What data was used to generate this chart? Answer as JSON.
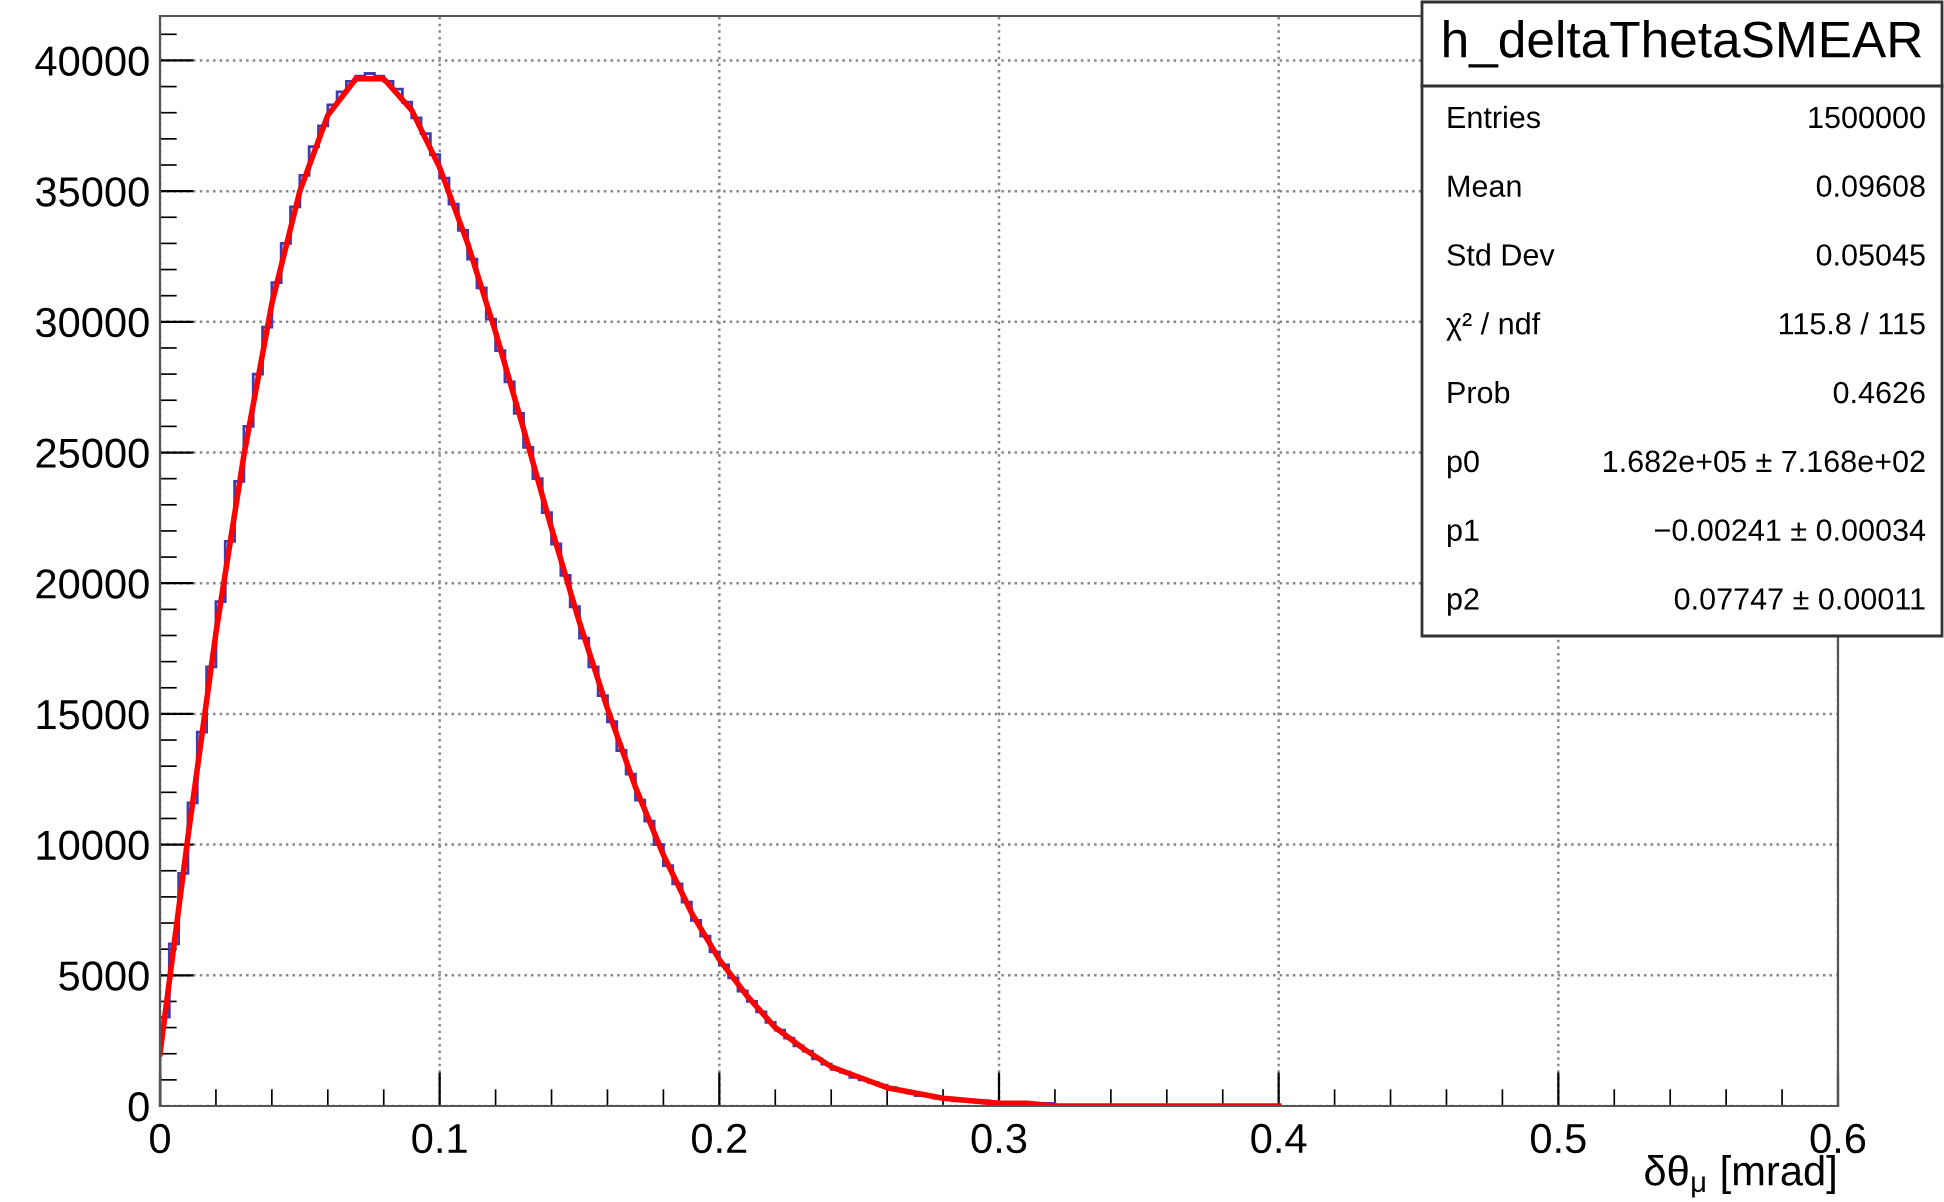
{
  "chart_data": {
    "type": "histogram",
    "xlabel": "δθ$_{μ}$ [mrad]",
    "bins": [
      0,
      0.00333,
      0.00667,
      0.01,
      0.01333,
      0.01667,
      0.02,
      0.02333,
      0.02667,
      0.03,
      0.03333,
      0.03667,
      0.04,
      0.04333,
      0.04667,
      0.05,
      0.05333,
      0.05667,
      0.06,
      0.06333,
      0.06667,
      0.07,
      0.07333,
      0.07667,
      0.08,
      0.08333,
      0.08667,
      0.09,
      0.09333,
      0.09667,
      0.1,
      0.10333,
      0.10667,
      0.11,
      0.11333,
      0.11667,
      0.12,
      0.12333,
      0.12667,
      0.13,
      0.13333,
      0.13667,
      0.14,
      0.14333,
      0.14667,
      0.15,
      0.15333,
      0.15667,
      0.16,
      0.16333,
      0.16667,
      0.17,
      0.17333,
      0.17667,
      0.18,
      0.18333,
      0.18667,
      0.19,
      0.19333,
      0.19667,
      0.2,
      0.20333,
      0.20667,
      0.21,
      0.21333,
      0.21667,
      0.22,
      0.22333,
      0.22667,
      0.23,
      0.23333,
      0.23667,
      0.24,
      0.24333,
      0.24667,
      0.25,
      0.25333,
      0.25667,
      0.26,
      0.26333,
      0.26667,
      0.27,
      0.27333,
      0.27667,
      0.28,
      0.28333,
      0.28667,
      0.29,
      0.29333,
      0.29667,
      0.3,
      0.30333,
      0.30667,
      0.31,
      0.31333,
      0.31667,
      0.32,
      0.32333,
      0.32667,
      0.33,
      0.33333,
      0.33667,
      0.34,
      0.34333,
      0.34667,
      0.35,
      0.35333,
      0.35667,
      0.36,
      0.36333,
      0.36667,
      0.37,
      0.37333,
      0.37667,
      0.38,
      0.38333,
      0.38667,
      0.39,
      0.39333,
      0.39667,
      0.4
    ],
    "series": [
      {
        "color": "#3c3cb4",
        "values": [
          3400,
          6200,
          8900,
          11600,
          14300,
          16800,
          19300,
          21600,
          23900,
          26000,
          28000,
          29800,
          31500,
          33000,
          34400,
          35600,
          36700,
          37500,
          38300,
          38800,
          39200,
          39400,
          39500,
          39400,
          39200,
          38900,
          38400,
          37800,
          37200,
          36400,
          35500,
          34500,
          33500,
          32400,
          31300,
          30100,
          28900,
          27700,
          26500,
          25200,
          24000,
          22700,
          21500,
          20300,
          19100,
          17900,
          16800,
          15700,
          14700,
          13600,
          12700,
          11700,
          10900,
          10000,
          9200,
          8500,
          7800,
          7100,
          6500,
          5900,
          5400,
          4900,
          4400,
          4000,
          3600,
          3200,
          2900,
          2600,
          2300,
          2100,
          1800,
          1600,
          1400,
          1300,
          1100,
          1000,
          900,
          800,
          700,
          600,
          500,
          400,
          400,
          300,
          300,
          200,
          200,
          200,
          200,
          100,
          100,
          100,
          100,
          100,
          100,
          100,
          0,
          0,
          0,
          0,
          0,
          0,
          0,
          0,
          0,
          0,
          0,
          0,
          0,
          0,
          0,
          0,
          0,
          0,
          0,
          0,
          0,
          0,
          0,
          0
        ]
      },
      {
        "type": "line",
        "color": "#ff0000",
        "x": [
          0,
          0.01,
          0.02,
          0.03,
          0.04,
          0.05,
          0.06,
          0.07,
          0.08,
          0.09,
          0.1,
          0.11,
          0.12,
          0.13,
          0.14,
          0.15,
          0.16,
          0.17,
          0.18,
          0.19,
          0.2,
          0.21,
          0.22,
          0.23,
          0.24,
          0.25,
          0.26,
          0.27,
          0.28,
          0.29,
          0.3,
          0.31,
          0.32,
          0.33,
          0.34,
          0.35,
          0.36,
          0.37,
          0.38,
          0.39,
          0.4
        ],
        "values": [
          2000,
          10300,
          18100,
          24900,
          30700,
          35000,
          37900,
          39300,
          39300,
          38100,
          35900,
          33000,
          29600,
          25900,
          22100,
          18500,
          15200,
          12200,
          9600,
          7400,
          5600,
          4200,
          3000,
          2200,
          1500,
          1100,
          700,
          500,
          300,
          200,
          100,
          100,
          0,
          0,
          0,
          0,
          0,
          0,
          0,
          0,
          0
        ]
      }
    ],
    "xlim": [
      0,
      0.6
    ],
    "xticks": [
      0,
      0.1,
      0.2,
      0.3,
      0.4,
      0.5,
      0.6
    ],
    "ylim": [
      0,
      41700
    ],
    "yticks": [
      0,
      5000,
      10000,
      15000,
      20000,
      25000,
      30000,
      35000,
      40000
    ],
    "grid": true,
    "annotations": [
      "h_deltaThetaSMEAR",
      "Entries",
      "1500000",
      "Mean",
      "0.09608",
      "Std Dev",
      "0.05045",
      "χ² / ndf",
      "115.8 / 115",
      "Prob",
      "0.4626",
      "p0",
      "1.682e+05 ± 7.168e+02",
      "p1",
      "−0.00241 ± 0.00034",
      "p2",
      "0.07747 ± 0.00011"
    ]
  }
}
